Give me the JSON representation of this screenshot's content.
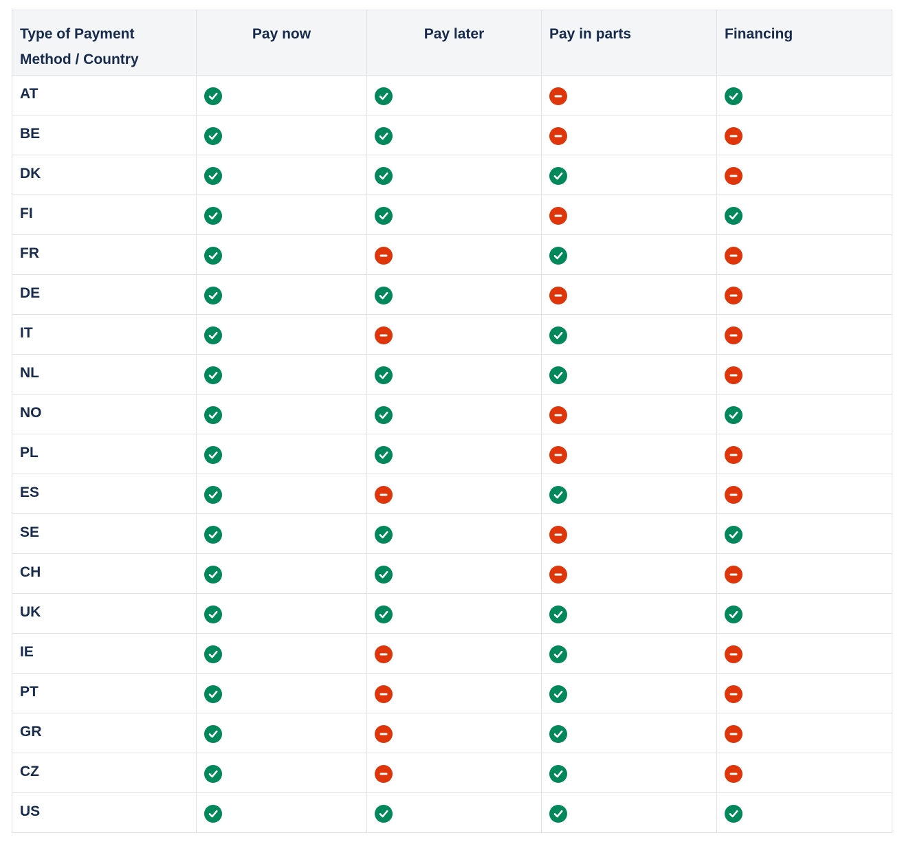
{
  "colors": {
    "yes": "#00875a",
    "no": "#de350b",
    "header_bg": "#f4f5f7",
    "border": "#dfe1e6",
    "text": "#172b4d"
  },
  "table": {
    "headers": [
      "Type of Payment Method / Country",
      "Pay now",
      "Pay later",
      "Pay in parts",
      "Financing"
    ],
    "rows": [
      {
        "country": "AT",
        "values": [
          "yes",
          "yes",
          "no",
          "yes"
        ]
      },
      {
        "country": "BE",
        "values": [
          "yes",
          "yes",
          "no",
          "no"
        ]
      },
      {
        "country": "DK",
        "values": [
          "yes",
          "yes",
          "yes",
          "no"
        ]
      },
      {
        "country": "FI",
        "values": [
          "yes",
          "yes",
          "no",
          "yes"
        ]
      },
      {
        "country": "FR",
        "values": [
          "yes",
          "no",
          "yes",
          "no"
        ]
      },
      {
        "country": "DE",
        "values": [
          "yes",
          "yes",
          "no",
          "no"
        ]
      },
      {
        "country": "IT",
        "values": [
          "yes",
          "no",
          "yes",
          "no"
        ]
      },
      {
        "country": "NL",
        "values": [
          "yes",
          "yes",
          "yes",
          "no"
        ]
      },
      {
        "country": "NO",
        "values": [
          "yes",
          "yes",
          "no",
          "yes"
        ]
      },
      {
        "country": "PL",
        "values": [
          "yes",
          "yes",
          "no",
          "no"
        ]
      },
      {
        "country": "ES",
        "values": [
          "yes",
          "no",
          "yes",
          "no"
        ]
      },
      {
        "country": "SE",
        "values": [
          "yes",
          "yes",
          "no",
          "yes"
        ]
      },
      {
        "country": "CH",
        "values": [
          "yes",
          "yes",
          "no",
          "no"
        ]
      },
      {
        "country": "UK",
        "values": [
          "yes",
          "yes",
          "yes",
          "yes"
        ]
      },
      {
        "country": "IE",
        "values": [
          "yes",
          "no",
          "yes",
          "no"
        ]
      },
      {
        "country": "PT",
        "values": [
          "yes",
          "no",
          "yes",
          "no"
        ]
      },
      {
        "country": "GR",
        "values": [
          "yes",
          "no",
          "yes",
          "no"
        ]
      },
      {
        "country": "CZ",
        "values": [
          "yes",
          "no",
          "yes",
          "no"
        ]
      },
      {
        "country": "US",
        "values": [
          "yes",
          "yes",
          "yes",
          "yes"
        ]
      }
    ]
  }
}
